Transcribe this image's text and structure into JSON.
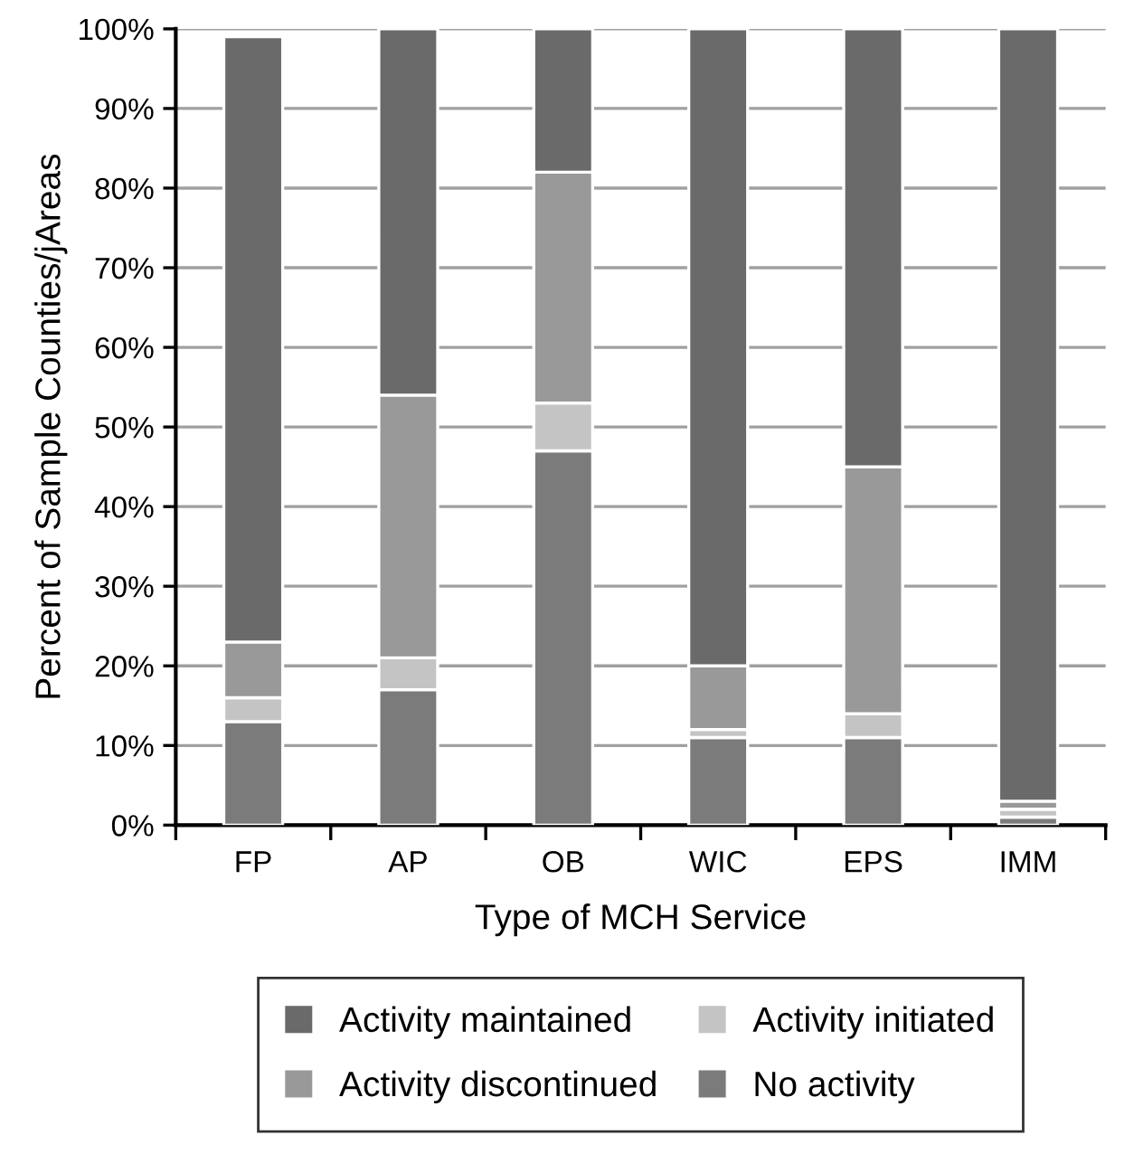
{
  "chart_data": {
    "type": "bar",
    "stacked": true,
    "xlabel": "Type of MCH Service",
    "ylabel": "Percent of Sample Counties/jAreas",
    "categories": [
      "FP",
      "AP",
      "OB",
      "WIC",
      "EPS",
      "IMM"
    ],
    "series": [
      {
        "name": "No activity",
        "color": "#7b7b7b",
        "values": [
          13,
          17,
          47,
          11,
          11,
          1
        ]
      },
      {
        "name": "Activity initiated",
        "color": "#c4c4c4",
        "values": [
          3,
          4,
          6,
          1,
          3,
          1
        ]
      },
      {
        "name": "Activity discontinued",
        "color": "#999999",
        "values": [
          7,
          33,
          29,
          8,
          31,
          1
        ]
      },
      {
        "name": "Activity maintained",
        "color": "#6a6a6a",
        "values": [
          76,
          46,
          18,
          80,
          55,
          97
        ]
      }
    ],
    "ylim": [
      0,
      100
    ],
    "yticks": [
      {
        "value": 0,
        "label": "0%"
      },
      {
        "value": 10,
        "label": "10%"
      },
      {
        "value": 20,
        "label": "20%"
      },
      {
        "value": 30,
        "label": "30%"
      },
      {
        "value": 40,
        "label": "40%"
      },
      {
        "value": 50,
        "label": "50%"
      },
      {
        "value": 60,
        "label": "60%"
      },
      {
        "value": 70,
        "label": "70%"
      },
      {
        "value": 80,
        "label": "80%"
      },
      {
        "value": 90,
        "label": "90%"
      },
      {
        "value": 100,
        "label": "100%"
      }
    ],
    "grid": "y",
    "legend": "bottom"
  }
}
